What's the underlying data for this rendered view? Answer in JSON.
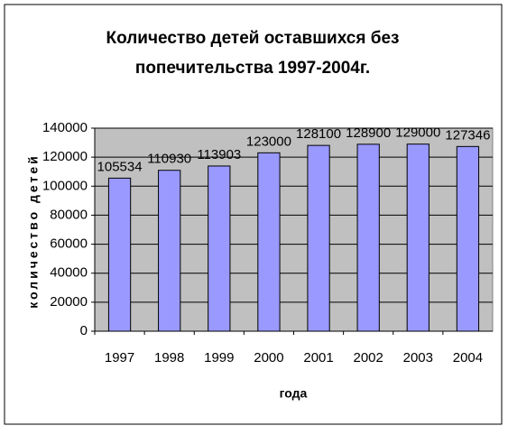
{
  "chart_data": {
    "type": "bar",
    "title": [
      "Количество детей оставшихся без",
      "попечительства 1997-2004г."
    ],
    "x_label": "года",
    "y_label": "количество детей",
    "categories": [
      "1997",
      "1998",
      "1999",
      "2000",
      "2001",
      "2002",
      "2003",
      "2004"
    ],
    "values": [
      105534,
      110930,
      113903,
      123000,
      128100,
      128900,
      129000,
      127346
    ],
    "color": "#9999ff",
    "ylim": [
      0,
      140000
    ],
    "yticks": [
      0,
      20000,
      40000,
      60000,
      80000,
      100000,
      120000,
      140000
    ],
    "grid": true
  }
}
